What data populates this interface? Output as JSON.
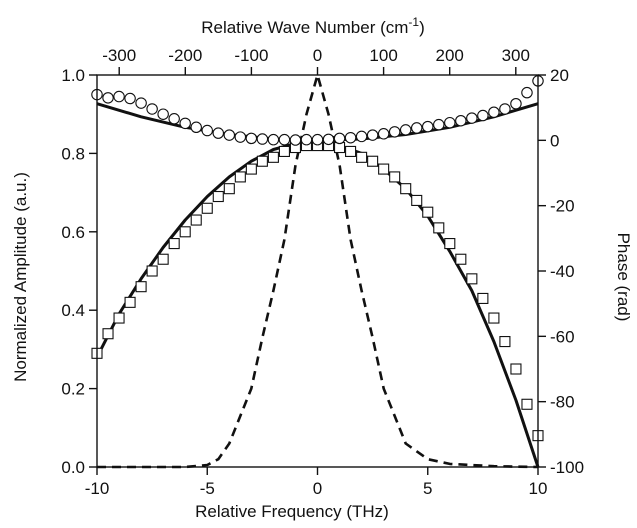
{
  "chart_data": {
    "type": "line",
    "title": "",
    "xlabel": "Relative Frequency (THz)",
    "x2label_parts": {
      "main": "Relative Wave Number (cm",
      "sup": "-1",
      "close": ")"
    },
    "ylabel": "Normalized Amplitude (a.u.)",
    "y2label": "Phase (rad)",
    "xlim": [
      -10,
      10
    ],
    "x2lim": [
      -333.6,
      333.6
    ],
    "ylim": [
      0,
      1
    ],
    "y2lim": [
      -100,
      20
    ],
    "xticks": [
      "-10",
      "-5",
      "0",
      "5",
      "10"
    ],
    "x2ticks": [
      "-300",
      "-200",
      "-100",
      "0",
      "100",
      "200",
      "300"
    ],
    "yticks": [
      "0.0",
      "0.2",
      "0.4",
      "0.6",
      "0.8",
      "1.0"
    ],
    "y2ticks": [
      "-100",
      "-80",
      "-60",
      "-40",
      "-20",
      "0",
      "20"
    ],
    "grid": false,
    "colors": {
      "ink": "#111111",
      "marker_fill": "#ffffff"
    },
    "series": [
      {
        "axis": "left",
        "style": "dashed",
        "x": [
          -10,
          -8,
          -6,
          -5,
          -4.5,
          -4,
          -3.5,
          -3,
          -2.5,
          -2,
          -1.5,
          -1,
          -0.5,
          0,
          0.5,
          1,
          1.5,
          2,
          2.5,
          3,
          3.5,
          4,
          4.5,
          5,
          6,
          8,
          10
        ],
        "y": [
          0.0,
          0.0,
          0.0,
          0.005,
          0.02,
          0.06,
          0.13,
          0.2,
          0.33,
          0.45,
          0.58,
          0.77,
          0.9,
          1.0,
          0.9,
          0.77,
          0.58,
          0.45,
          0.33,
          0.2,
          0.13,
          0.06,
          0.04,
          0.02,
          0.008,
          0.002,
          0.0
        ]
      },
      {
        "axis": "left",
        "style": "solid",
        "x": [
          -10,
          -9,
          -8,
          -7,
          -6,
          -5,
          -4,
          -3,
          -2,
          -1,
          0,
          1,
          2,
          3,
          4,
          5,
          6,
          7,
          8,
          9,
          10
        ],
        "y": [
          0.28,
          0.39,
          0.48,
          0.56,
          0.63,
          0.69,
          0.74,
          0.78,
          0.81,
          0.825,
          0.83,
          0.82,
          0.8,
          0.76,
          0.71,
          0.64,
          0.55,
          0.45,
          0.32,
          0.17,
          0.0
        ]
      },
      {
        "axis": "left",
        "marker": "square",
        "x": [
          -10,
          -9.5,
          -9,
          -8.5,
          -8,
          -7.5,
          -7,
          -6.5,
          -6,
          -5.5,
          -5,
          -4.5,
          -4,
          -3.5,
          -3,
          -2.5,
          -2,
          -1.5,
          -1,
          -0.5,
          0,
          0.5,
          1,
          1.5,
          2,
          2.5,
          3,
          3.5,
          4,
          4.5,
          5,
          5.5,
          6,
          6.5,
          7,
          7.5,
          8,
          8.5,
          9,
          9.5,
          10
        ],
        "y": [
          0.29,
          0.34,
          0.38,
          0.42,
          0.46,
          0.5,
          0.53,
          0.57,
          0.6,
          0.63,
          0.66,
          0.69,
          0.71,
          0.74,
          0.76,
          0.78,
          0.79,
          0.805,
          0.815,
          0.82,
          0.82,
          0.82,
          0.815,
          0.805,
          0.79,
          0.78,
          0.76,
          0.74,
          0.71,
          0.68,
          0.65,
          0.61,
          0.57,
          0.53,
          0.48,
          0.43,
          0.38,
          0.32,
          0.25,
          0.16,
          0.08
        ]
      },
      {
        "axis": "right",
        "style": "solid",
        "x": [
          -10,
          -8,
          -6,
          -4,
          -2,
          0,
          2,
          4,
          6,
          8,
          10
        ],
        "y": [
          11.2,
          7.2,
          4.0,
          1.8,
          0.4,
          0.0,
          0.4,
          1.8,
          4.0,
          7.2,
          11.2
        ]
      },
      {
        "axis": "right",
        "marker": "circle",
        "x": [
          -10,
          -9.5,
          -9,
          -8.5,
          -8,
          -7.5,
          -7,
          -6.5,
          -6,
          -5.5,
          -5,
          -4.5,
          -4,
          -3.5,
          -3,
          -2.5,
          -2,
          -1.5,
          -1,
          -0.5,
          0,
          0.5,
          1,
          1.5,
          2,
          2.5,
          3,
          3.5,
          4,
          4.5,
          5,
          5.5,
          6,
          6.5,
          7,
          7.5,
          8,
          8.5,
          9,
          9.5,
          10
        ],
        "y": [
          14.0,
          13.0,
          13.4,
          12.8,
          11.4,
          9.6,
          8.0,
          6.6,
          5.2,
          4.0,
          3.0,
          2.2,
          1.6,
          1.0,
          0.6,
          0.4,
          0.2,
          0.2,
          0.1,
          0.2,
          0.2,
          0.3,
          0.6,
          0.8,
          1.2,
          1.6,
          2.0,
          2.6,
          3.2,
          3.8,
          4.2,
          4.8,
          5.4,
          6.0,
          6.8,
          7.6,
          8.6,
          9.6,
          11.2,
          14.6,
          18.2
        ]
      }
    ]
  }
}
